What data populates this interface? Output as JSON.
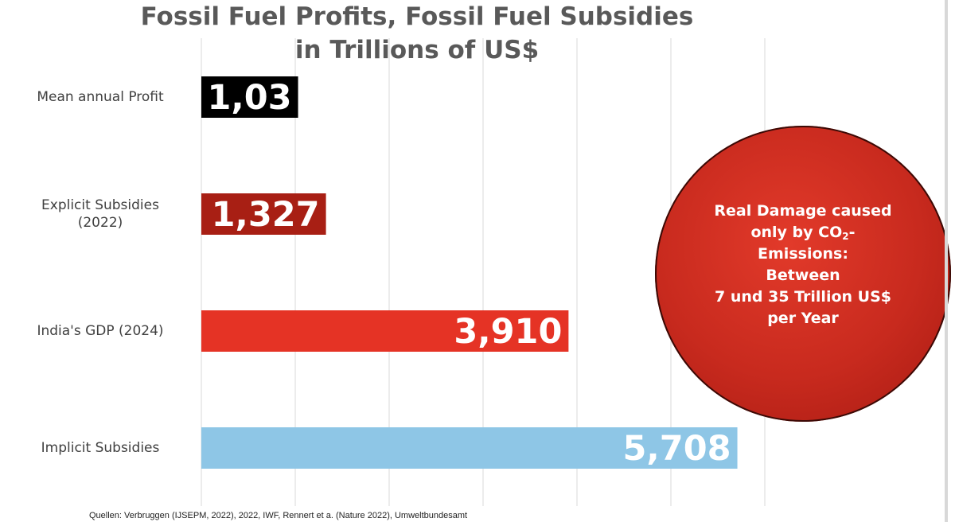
{
  "chart_data": {
    "type": "bar",
    "orientation": "horizontal",
    "title_line1": "Fossil Fuel Profits, Fossil Fuel Subsidies",
    "title_line2": "in Trillions of US$",
    "categories": [
      "Mean annual Profit",
      "Explicit Subsidies (2022)",
      "India's GDP (2024)",
      "Implicit Subsidies"
    ],
    "category_lines": [
      [
        "Mean annual Profit"
      ],
      [
        "Explicit Subsidies",
        "(2022)"
      ],
      [
        "India's GDP (2024)"
      ],
      [
        "Implicit Subsidies"
      ]
    ],
    "values": [
      1.03,
      1.327,
      3.91,
      5.708
    ],
    "value_labels": [
      "1,03",
      "1,327",
      "3,910",
      "5,708"
    ],
    "bar_colors": [
      "#000000",
      "#a81f14",
      "#e53325",
      "#8ec6e6"
    ],
    "xlim": [
      0,
      6
    ],
    "grid": true,
    "source": "Quellen: Verbruggen (IJSEPM, 2022), 2022, IWF, Rennert et a. (Nature 2022), Umweltbundesamt"
  },
  "annotation": {
    "line1": "Real Damage caused",
    "line2_pre": "only by CO",
    "line2_sub": "2",
    "line2_post": "-",
    "line3": "Emissions:",
    "line4": "Between",
    "line5": "7 und 35 Trillion US$",
    "line6": "per Year",
    "color": "#c82a1e"
  }
}
